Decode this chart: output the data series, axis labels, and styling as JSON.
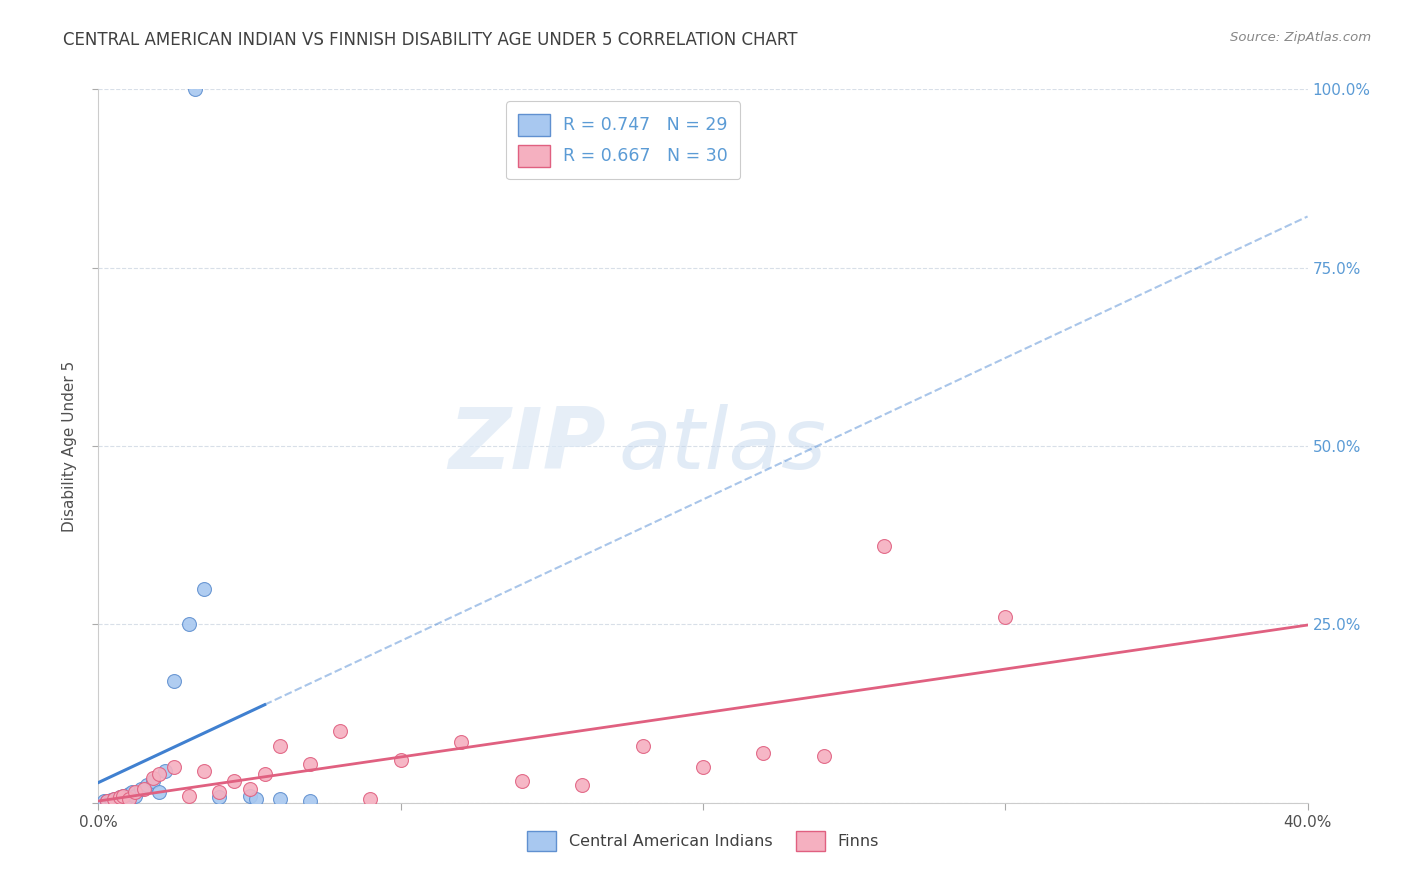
{
  "title": "CENTRAL AMERICAN INDIAN VS FINNISH DISABILITY AGE UNDER 5 CORRELATION CHART",
  "source_text": "Source: ZipAtlas.com",
  "ylabel": "Disability Age Under 5",
  "watermark_zip": "ZIP",
  "watermark_atlas": "atlas",
  "legend_line1": "R = 0.747   N = 29",
  "legend_line2": "R = 0.667   N = 30",
  "series1_label": "Central American Indians",
  "series2_label": "Finns",
  "series1_color": "#a8c8f0",
  "series2_color": "#f5b0c0",
  "series1_edge_color": "#6090d0",
  "series2_edge_color": "#e06080",
  "trendline1_color": "#4080d0",
  "trendline2_color": "#e06080",
  "right_axis_color": "#5b9bd5",
  "grid_color": "#d8dfe8",
  "background_color": "#ffffff",
  "title_color": "#404040",
  "source_color": "#888888",
  "series1_x": [
    0.2,
    0.3,
    0.35,
    0.4,
    0.45,
    0.5,
    0.55,
    0.6,
    0.65,
    0.7,
    0.8,
    0.9,
    1.0,
    1.1,
    1.2,
    1.4,
    1.6,
    1.8,
    2.0,
    2.2,
    2.5,
    3.0,
    3.5,
    4.0,
    5.0,
    6.0,
    7.0,
    3.2,
    5.2
  ],
  "series1_y": [
    0.2,
    0.3,
    0.1,
    0.4,
    0.2,
    0.5,
    0.3,
    0.6,
    0.2,
    0.8,
    1.0,
    0.7,
    1.2,
    1.5,
    0.9,
    2.0,
    2.5,
    3.0,
    1.5,
    4.5,
    17.0,
    25.0,
    30.0,
    0.8,
    1.0,
    0.5,
    0.3,
    100.0,
    0.6
  ],
  "series2_x": [
    0.3,
    0.5,
    0.7,
    0.8,
    1.0,
    1.2,
    1.5,
    1.8,
    2.0,
    2.5,
    3.0,
    3.5,
    4.0,
    4.5,
    5.0,
    5.5,
    6.0,
    7.0,
    8.0,
    9.0,
    10.0,
    12.0,
    14.0,
    16.0,
    18.0,
    20.0,
    22.0,
    24.0,
    26.0,
    30.0
  ],
  "series2_y": [
    0.3,
    0.5,
    0.8,
    1.0,
    0.6,
    1.5,
    2.0,
    3.5,
    4.0,
    5.0,
    1.0,
    4.5,
    1.5,
    3.0,
    2.0,
    4.0,
    8.0,
    5.5,
    10.0,
    0.5,
    6.0,
    8.5,
    3.0,
    2.5,
    8.0,
    5.0,
    7.0,
    6.5,
    36.0,
    26.0
  ],
  "xlim": [
    0,
    40
  ],
  "ylim": [
    0,
    100
  ],
  "x_ticks": [
    0,
    10,
    20,
    30,
    40
  ],
  "y_ticks": [
    0,
    25,
    50,
    75,
    100
  ]
}
